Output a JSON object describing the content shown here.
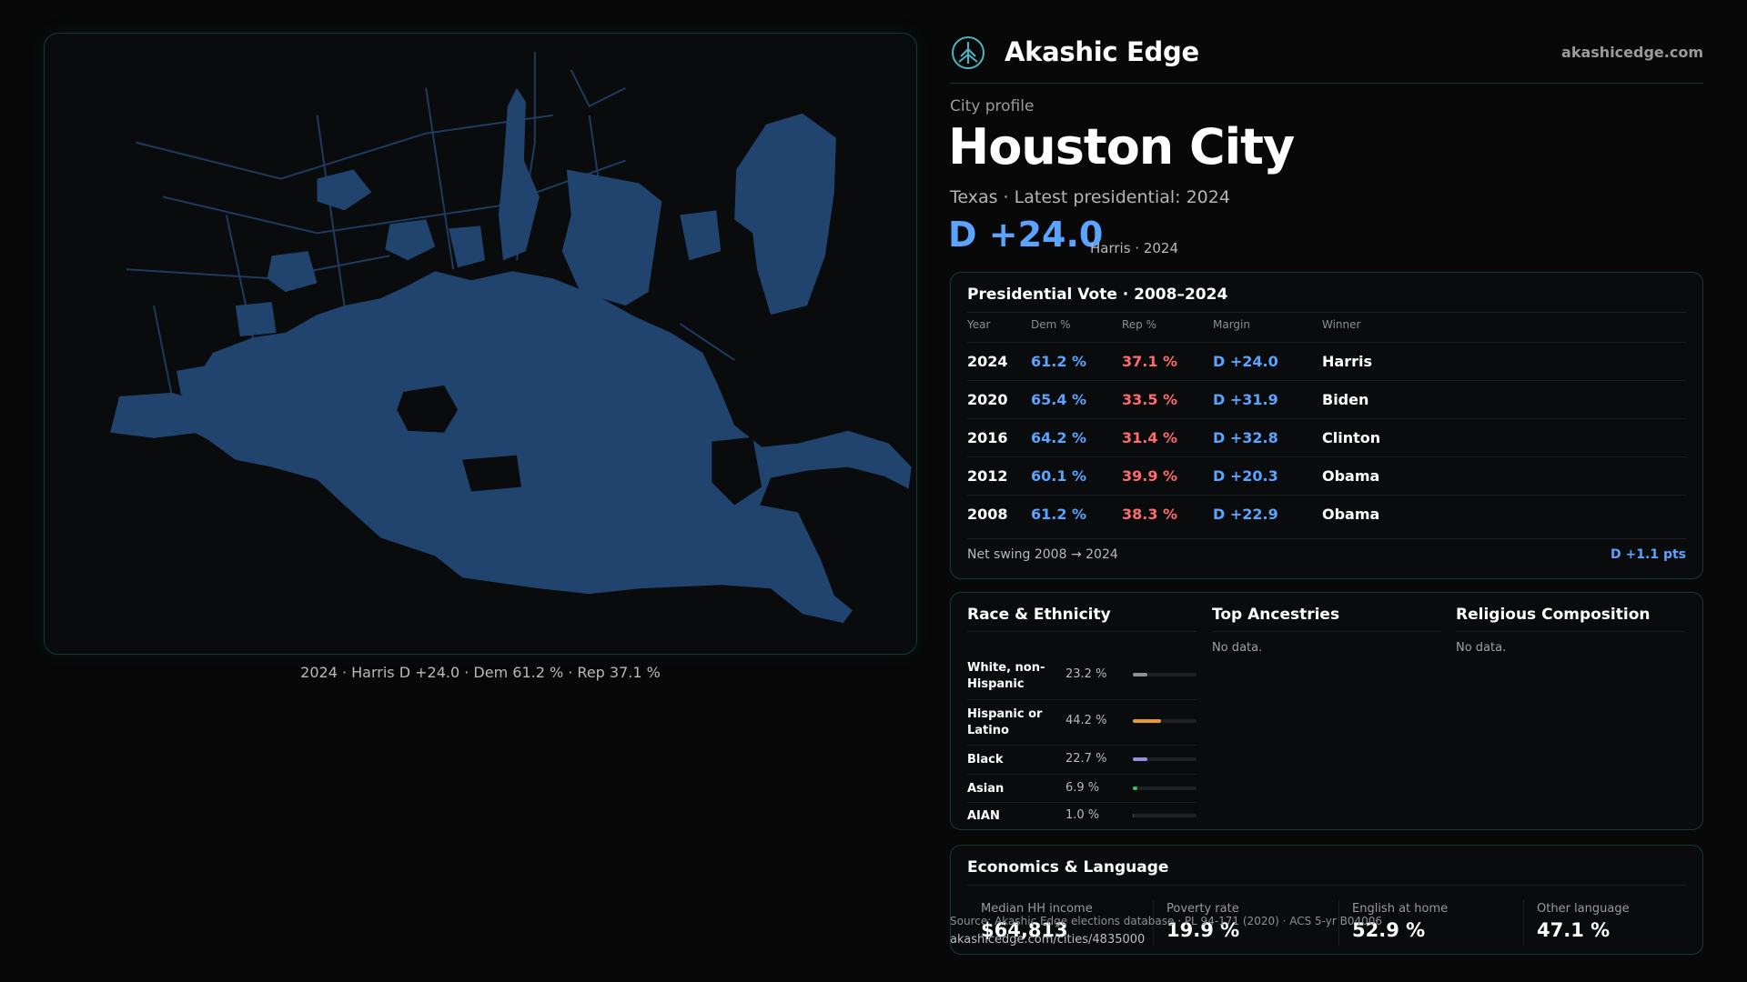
{
  "brand": {
    "name": "Akashic Edge",
    "domain": "akashicedge.com",
    "logo_icon": "akashic-tree-icon",
    "accent": "#4fb3c2"
  },
  "profile": {
    "eyebrow": "City profile",
    "title": "Houston City",
    "subtitle": "Texas · Latest presidential: 2024",
    "margin": "D +24.0",
    "margin_sub": "Harris · 2024"
  },
  "map": {
    "caption": "2024 · Harris D +24.0 · Dem 61.2 % · Rep 37.1 %",
    "fill_color": "#21446f"
  },
  "vote_table": {
    "title": "Presidential Vote · 2008–2024",
    "headers": {
      "year": "Year",
      "dem": "Dem %",
      "rep": "Rep %",
      "margin": "Margin",
      "winner": "Winner"
    },
    "rows": [
      {
        "year": "2024",
        "dem": "61.2 %",
        "rep": "37.1 %",
        "margin": "D +24.0",
        "winner": "Harris"
      },
      {
        "year": "2020",
        "dem": "65.4 %",
        "rep": "33.5 %",
        "margin": "D +31.9",
        "winner": "Biden"
      },
      {
        "year": "2016",
        "dem": "64.2 %",
        "rep": "31.4 %",
        "margin": "D +32.8",
        "winner": "Clinton"
      },
      {
        "year": "2012",
        "dem": "60.1 %",
        "rep": "39.9 %",
        "margin": "D +20.3",
        "winner": "Obama"
      },
      {
        "year": "2008",
        "dem": "61.2 %",
        "rep": "38.3 %",
        "margin": "D +22.9",
        "winner": "Obama"
      }
    ],
    "swing_label": "Net swing 2008 → 2024",
    "swing_value": "D +1.1 pts",
    "colors": {
      "dem": "#5aa4ff",
      "rep": "#ff6b6b"
    }
  },
  "race": {
    "title": "Race & Ethnicity",
    "rows": [
      {
        "label": "White, non-Hispanic",
        "pct": "23.2 %",
        "value": 23.2,
        "color": "#8a9199"
      },
      {
        "label": "Hispanic or Latino",
        "pct": "44.2 %",
        "value": 44.2,
        "color": "#e59a2a"
      },
      {
        "label": "Black",
        "pct": "22.7 %",
        "value": 22.7,
        "color": "#9a8ce0"
      },
      {
        "label": "Asian",
        "pct": "6.9 %",
        "value": 6.9,
        "color": "#2fbf71"
      },
      {
        "label": "AIAN",
        "pct": "1.0 %",
        "value": 1.0,
        "color": "#555a60"
      }
    ]
  },
  "ancestries": {
    "title": "Top Ancestries",
    "empty": "No data."
  },
  "religion": {
    "title": "Religious Composition",
    "empty": "No data."
  },
  "economics": {
    "title": "Economics & Language",
    "stats": [
      {
        "label": "Median HH income",
        "value": "$64,813"
      },
      {
        "label": "Poverty rate",
        "value": "19.9 %"
      },
      {
        "label": "English at home",
        "value": "52.9 %"
      },
      {
        "label": "Other language",
        "value": "47.1 %"
      }
    ]
  },
  "footer": {
    "source": "Source: Akashic Edge elections database · PL 94-171 (2020) · ACS 5-yr B04006",
    "url": "akashicedge.com/cities/4835000"
  }
}
